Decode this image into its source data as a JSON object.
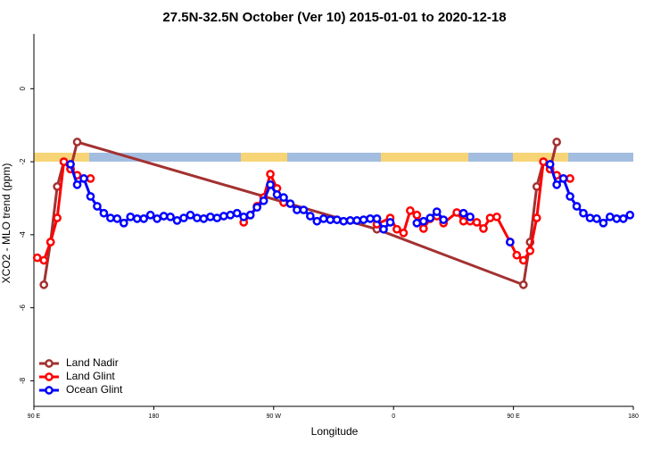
{
  "chart_data": {
    "type": "line",
    "title": "27.5N-32.5N October (Ver 10)   2015-01-01 to 2020-12-18",
    "x_label": "Longitude",
    "y_label": "XCO2 - MLO trend (ppm)",
    "xlim": [
      90,
      540
    ],
    "ylim": [
      -8.7,
      1.5
    ],
    "xticks": [
      {
        "value": 90,
        "label": "90 E"
      },
      {
        "value": 180,
        "label": "180"
      },
      {
        "value": 270,
        "label": "90 W"
      },
      {
        "value": 360,
        "label": "0"
      },
      {
        "value": 450,
        "label": "90 E"
      },
      {
        "value": 540,
        "label": "180"
      }
    ],
    "yticks": [
      0,
      -2,
      -4,
      -6,
      -8
    ],
    "legend": "bottom-left",
    "series": [
      {
        "name": "Land Nadir",
        "color": "#a33131",
        "x": [
          97.5,
          102.5,
          107.5,
          112.5,
          117.5,
          122.5,
          347.5,
          457.5,
          462.5,
          467.5,
          472.5,
          477.5,
          482.5
        ],
        "values": [
          -5.37,
          -4.2,
          -2.68,
          -2.0,
          -2.2,
          -1.46,
          -3.85,
          -5.37,
          -4.2,
          -2.68,
          -2.0,
          -2.2,
          -1.46
        ]
      },
      {
        "name": "Land Glint",
        "color": "#ff0000",
        "x": [
          92.5,
          97.5,
          102.5,
          107.5,
          112.5,
          117.5,
          122.5,
          132.5,
          137.5,
          247.5,
          252.5,
          257.5,
          262.5,
          267.5,
          272.5,
          277.5,
          282.5,
          347.5,
          357.5,
          362.5,
          367.5,
          372.5,
          377.5,
          382.5,
          387.5,
          392.5,
          397.5,
          407.5,
          412.5,
          417.5,
          422.5,
          427.5,
          432.5,
          437.5,
          447.5,
          452.5,
          457.5,
          462.5,
          467.5,
          472.5,
          477.5,
          482.5,
          492.5
        ],
        "values": [
          -4.63,
          -4.7,
          -4.2,
          -3.54,
          -2.0,
          -2.2,
          -2.37,
          -2.46,
          null,
          -3.66,
          -3.46,
          -3.22,
          -2.98,
          -2.34,
          -2.73,
          -3.12,
          null,
          -3.71,
          -3.54,
          -3.85,
          -3.95,
          -3.34,
          -3.46,
          -3.83,
          -3.56,
          -3.49,
          -3.68,
          -3.39,
          -3.63,
          -3.63,
          -3.66,
          -3.83,
          -3.54,
          -3.51,
          -4.2,
          -4.56,
          -4.7,
          -4.44,
          -3.54,
          -2.0,
          -2.2,
          -2.37,
          -2.46
        ]
      },
      {
        "name": "Ocean Glint",
        "color": "#0000ff",
        "x": [
          117.5,
          122.5,
          127.5,
          132.5,
          137.5,
          142.5,
          147.5,
          152.5,
          157.5,
          162.5,
          167.5,
          172.5,
          177.5,
          182.5,
          187.5,
          192.5,
          197.5,
          202.5,
          207.5,
          212.5,
          217.5,
          222.5,
          227.5,
          232.5,
          237.5,
          242.5,
          247.5,
          252.5,
          257.5,
          262.5,
          267.5,
          272.5,
          277.5,
          282.5,
          287.5,
          292.5,
          297.5,
          302.5,
          307.5,
          312.5,
          317.5,
          322.5,
          327.5,
          332.5,
          337.5,
          342.5,
          347.5,
          352.5,
          357.5,
          362.5,
          377.5,
          382.5,
          387.5,
          392.5,
          397.5,
          402.5,
          412.5,
          417.5,
          422.5,
          447.5,
          452.5,
          477.5,
          482.5,
          487.5,
          492.5,
          497.5,
          502.5,
          507.5,
          512.5,
          517.5,
          522.5,
          527.5,
          532.5,
          537.5
        ],
        "values": [
          -2.07,
          -2.63,
          -2.46,
          -2.95,
          -3.22,
          -3.41,
          -3.54,
          -3.56,
          -3.68,
          -3.51,
          -3.56,
          -3.56,
          -3.46,
          -3.56,
          -3.49,
          -3.51,
          -3.61,
          -3.54,
          -3.46,
          -3.54,
          -3.56,
          -3.51,
          -3.54,
          -3.49,
          -3.46,
          -3.41,
          -3.51,
          -3.46,
          -3.25,
          -3.07,
          -2.63,
          -2.9,
          -2.98,
          -3.15,
          -3.32,
          -3.32,
          -3.49,
          -3.63,
          -3.56,
          -3.59,
          -3.59,
          -3.63,
          -3.61,
          -3.61,
          -3.59,
          -3.56,
          -3.56,
          -3.85,
          -3.66,
          null,
          -3.68,
          -3.63,
          -3.54,
          -3.37,
          -3.59,
          null,
          -3.41,
          -3.51,
          null,
          -4.2,
          null,
          -2.07,
          -2.63,
          -2.46,
          -2.95,
          -3.22,
          -3.41,
          -3.54,
          -3.56,
          -3.68,
          -3.51,
          -3.56,
          -3.56,
          -3.46
        ]
      }
    ]
  }
}
